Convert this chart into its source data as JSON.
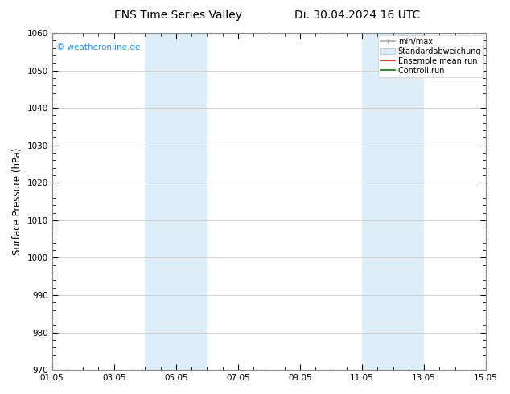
{
  "title_left": "ENS Time Series Valley",
  "title_right": "Di. 30.04.2024 16 UTC",
  "ylabel": "Surface Pressure (hPa)",
  "xlim": [
    0,
    14
  ],
  "ylim": [
    970,
    1060
  ],
  "yticks": [
    970,
    980,
    990,
    1000,
    1010,
    1020,
    1030,
    1040,
    1050,
    1060
  ],
  "xtick_labels": [
    "01.05",
    "03.05",
    "05.05",
    "07.05",
    "09.05",
    "11.05",
    "13.05",
    "15.05"
  ],
  "xtick_positions": [
    0,
    2,
    4,
    6,
    8,
    10,
    12,
    14
  ],
  "shaded_bands": [
    {
      "x_start": 3.0,
      "x_end": 5.0
    },
    {
      "x_start": 10.0,
      "x_end": 12.0
    }
  ],
  "band_color": "#ddeef8",
  "background_color": "#ffffff",
  "watermark_text": "© weatheronline.de",
  "watermark_color": "#1e90ff",
  "grid_color": "#cccccc",
  "title_fontsize": 10,
  "tick_fontsize": 7.5,
  "legend_fontsize": 7,
  "ylabel_fontsize": 8.5,
  "spine_color": "#888888"
}
